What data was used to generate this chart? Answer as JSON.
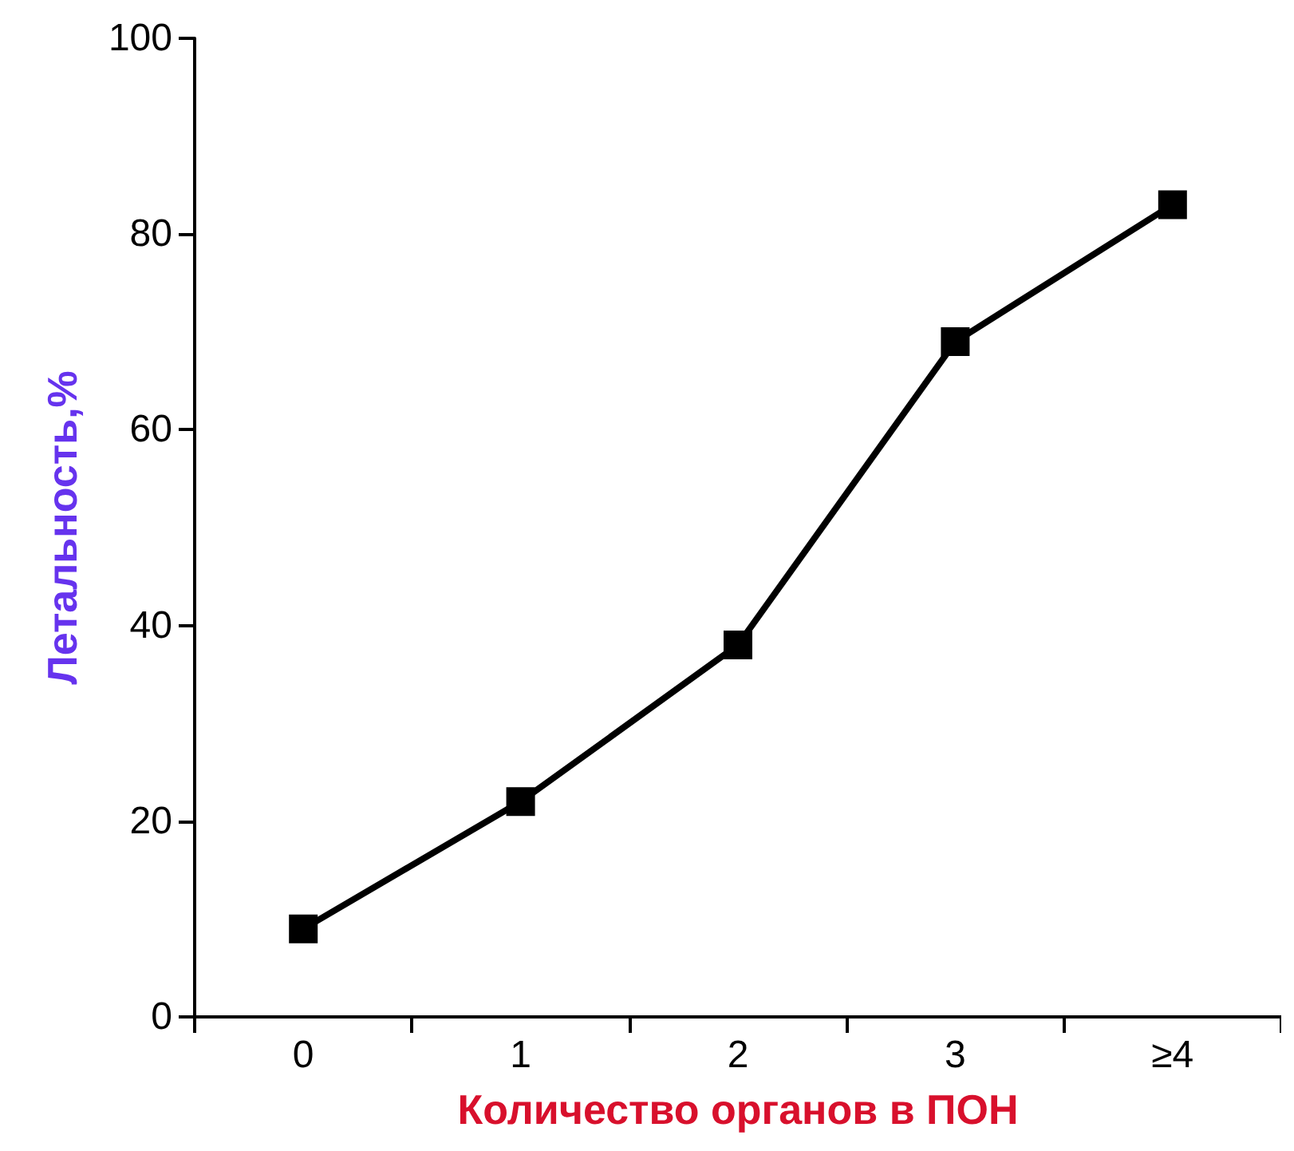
{
  "chart_data": {
    "type": "line",
    "xlabel": "Количество органов в ПОН",
    "ylabel": "Летальность,%",
    "categories": [
      "0",
      "1",
      "2",
      "3",
      "≥4"
    ],
    "series": [
      {
        "color": "#000000",
        "values": [
          9,
          22,
          38,
          69,
          83
        ]
      }
    ],
    "ylim": [
      0,
      100
    ],
    "yticks": [
      0,
      20,
      40,
      60,
      80,
      100
    ],
    "grid": false,
    "marker": "square",
    "line_style": "solid"
  }
}
